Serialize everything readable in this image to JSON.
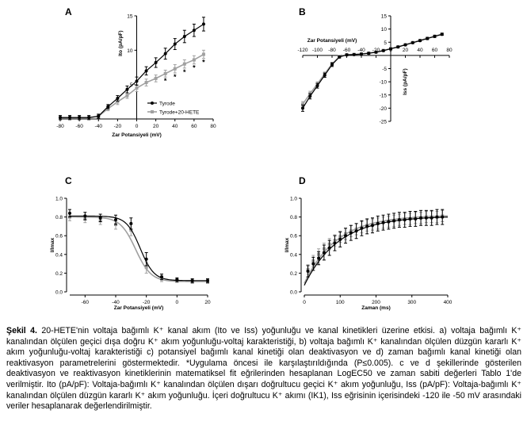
{
  "chart_data": [
    {
      "panel": "A",
      "type": "line",
      "xlabel": "Zar Potansiyeli (mV)",
      "ylabel": "Ito (pA/pF)",
      "xlim": [
        -80,
        80
      ],
      "ylim": [
        0,
        15
      ],
      "xticks": [
        "-80",
        "-60",
        "-40",
        "-20",
        "0",
        "20",
        "40",
        "60",
        "80"
      ],
      "yticks": [
        "5",
        "10",
        "15"
      ],
      "legend_position": "lower-right",
      "x": [
        -80,
        -70,
        -60,
        -50,
        -40,
        -30,
        -20,
        -10,
        0,
        10,
        20,
        30,
        40,
        50,
        60,
        70
      ],
      "series": [
        {
          "name": "Tyrode",
          "color": "#000000",
          "values": [
            0.2,
            0.2,
            0.2,
            0.2,
            0.4,
            1.8,
            3.0,
            4.3,
            5.5,
            7.0,
            8.2,
            9.5,
            10.9,
            12.0,
            12.9,
            13.8
          ],
          "errors": [
            0.3,
            0.3,
            0.3,
            0.3,
            0.3,
            0.3,
            0.4,
            0.5,
            0.6,
            0.6,
            0.7,
            0.8,
            0.8,
            0.9,
            0.9,
            1.0
          ]
        },
        {
          "name": "Tyrode+20-HETE",
          "color": "#a0a0a0",
          "values": [
            0.2,
            0.2,
            0.2,
            0.2,
            0.4,
            1.5,
            2.5,
            3.4,
            4.5,
            5.3,
            5.9,
            6.6,
            7.3,
            8.0,
            8.6,
            9.4
          ],
          "errors": [
            0.3,
            0.3,
            0.3,
            0.3,
            0.3,
            0.3,
            0.4,
            0.4,
            0.5,
            0.5,
            0.5,
            0.5,
            0.6,
            0.6,
            0.6,
            0.6
          ]
        }
      ],
      "significance": {
        "symbol": "*",
        "x": [
          30,
          40,
          50,
          60,
          70
        ]
      }
    },
    {
      "panel": "B",
      "type": "line",
      "xlabel": "Zar Potansiyeli (mV)",
      "ylabel": "Iss (pA/pF)",
      "xlim": [
        -120,
        80
      ],
      "ylim": [
        -25,
        15
      ],
      "xticks": [
        "-120",
        "-100",
        "-80",
        "-60",
        "-40",
        "-20",
        "0",
        "20",
        "40",
        "60",
        "80"
      ],
      "yticks": [
        "15",
        "10",
        "5",
        "-5",
        "-10",
        "-15",
        "-20",
        "-25"
      ],
      "x": [
        -120,
        -110,
        -100,
        -90,
        -80,
        -70,
        -60,
        -50,
        -40,
        -30,
        -20,
        -10,
        0,
        10,
        20,
        30,
        40,
        50,
        60,
        70
      ],
      "series": [
        {
          "color": "#000000",
          "values": [
            -20.0,
            -15.5,
            -11.5,
            -7.5,
            -3.5,
            -0.6,
            0.2,
            0.3,
            0.5,
            0.8,
            1.2,
            1.8,
            2.5,
            3.2,
            4.0,
            4.8,
            5.6,
            6.4,
            7.2,
            8.0
          ],
          "errors": [
            1.2,
            1.0,
            0.9,
            0.8,
            0.7,
            0.4,
            0.3,
            0.3,
            0.3,
            0.3,
            0.3,
            0.3,
            0.3,
            0.3,
            0.3,
            0.3,
            0.3,
            0.4,
            0.4,
            0.4
          ]
        },
        {
          "color": "#a0a0a0",
          "values": [
            -18.5,
            -14.5,
            -10.8,
            -7.0,
            -3.2,
            -0.5,
            0.3,
            0.4,
            0.6,
            0.9,
            1.3,
            1.9,
            2.6,
            3.3,
            4.1,
            4.9,
            5.7,
            6.5,
            7.3,
            8.1
          ],
          "errors": [
            1.0,
            0.9,
            0.8,
            0.7,
            0.6,
            0.4,
            0.3,
            0.3,
            0.3,
            0.3,
            0.3,
            0.3,
            0.3,
            0.3,
            0.3,
            0.3,
            0.3,
            0.4,
            0.4,
            0.4
          ]
        }
      ]
    },
    {
      "panel": "C",
      "type": "line",
      "xlabel": "Zar Potansiyeli (mV)",
      "ylabel": "I/Imax",
      "xlim": [
        -70,
        20
      ],
      "ylim": [
        0,
        1.0
      ],
      "xticks": [
        "-60",
        "-40",
        "-20",
        "0",
        "20"
      ],
      "yticks": [
        "0.0",
        "0.2",
        "0.4",
        "0.6",
        "0.8",
        "1.0"
      ],
      "x": [
        -70,
        -60,
        -50,
        -40,
        -30,
        -20,
        -10,
        0,
        10,
        20
      ],
      "series": [
        {
          "color": "#000000",
          "values": [
            0.84,
            0.81,
            0.79,
            0.77,
            0.73,
            0.35,
            0.16,
            0.13,
            0.12,
            0.12
          ],
          "errors": [
            0.04,
            0.04,
            0.04,
            0.05,
            0.06,
            0.07,
            0.03,
            0.02,
            0.02,
            0.02
          ],
          "fit": {
            "top": 0.81,
            "bottom": 0.12,
            "v50": -24,
            "k": 4.5
          }
        },
        {
          "color": "#a0a0a0",
          "values": [
            0.8,
            0.78,
            0.76,
            0.72,
            0.66,
            0.26,
            0.14,
            0.12,
            0.11,
            0.11
          ],
          "errors": [
            0.04,
            0.04,
            0.04,
            0.05,
            0.06,
            0.06,
            0.03,
            0.02,
            0.02,
            0.02
          ],
          "fit": {
            "top": 0.8,
            "bottom": 0.11,
            "v50": -27,
            "k": 5.0
          }
        }
      ]
    },
    {
      "panel": "D",
      "type": "line",
      "xlabel": "Zaman (ms)",
      "ylabel": "I/Imax",
      "xlim": [
        0,
        400
      ],
      "ylim": [
        0,
        1.0
      ],
      "xticks": [
        "0",
        "100",
        "200",
        "300",
        "400"
      ],
      "yticks": [
        "0.0",
        "0.2",
        "0.4",
        "0.6",
        "0.8",
        "1.0"
      ],
      "x": [
        10,
        25,
        40,
        55,
        70,
        85,
        100,
        115,
        130,
        145,
        160,
        175,
        190,
        205,
        220,
        235,
        250,
        265,
        280,
        295,
        310,
        325,
        340,
        355,
        370,
        385
      ],
      "series": [
        {
          "color": "#000000",
          "values": [
            0.22,
            0.3,
            0.36,
            0.42,
            0.47,
            0.52,
            0.56,
            0.6,
            0.63,
            0.65,
            0.68,
            0.7,
            0.71,
            0.73,
            0.74,
            0.75,
            0.76,
            0.77,
            0.77,
            0.78,
            0.78,
            0.79,
            0.79,
            0.79,
            0.8,
            0.8
          ],
          "errors": [
            0.06,
            0.07,
            0.07,
            0.08,
            0.08,
            0.08,
            0.08,
            0.08,
            0.08,
            0.08,
            0.08,
            0.08,
            0.08,
            0.08,
            0.08,
            0.08,
            0.08,
            0.08,
            0.08,
            0.08,
            0.08,
            0.08,
            0.08,
            0.08,
            0.08,
            0.08
          ],
          "fit": {
            "y0": 0.07,
            "plateau": 0.81,
            "tau": 95
          }
        },
        {
          "color": "#a0a0a0",
          "values": [
            0.24,
            0.33,
            0.4,
            0.46,
            0.51,
            0.55,
            0.59,
            0.62,
            0.65,
            0.67,
            0.69,
            0.71,
            0.72,
            0.73,
            0.74,
            0.75,
            0.76,
            0.77,
            0.78,
            0.78,
            0.79,
            0.79,
            0.8,
            0.8,
            0.8,
            0.81
          ],
          "errors": [
            0.05,
            0.06,
            0.06,
            0.06,
            0.06,
            0.06,
            0.06,
            0.06,
            0.06,
            0.06,
            0.06,
            0.06,
            0.06,
            0.06,
            0.06,
            0.06,
            0.06,
            0.06,
            0.06,
            0.06,
            0.06,
            0.06,
            0.06,
            0.06,
            0.06,
            0.06
          ],
          "fit": {
            "y0": 0.09,
            "plateau": 0.82,
            "tau": 90
          }
        }
      ]
    }
  ],
  "caption": {
    "label": "Şekil 4.",
    "text": "20-HETE'nin voltaja bağımlı K⁺ kanal akım (Ito ve Iss) yoğunluğu ve kanal kinetikleri üzerine etkisi. a) voltaja bağımlı K⁺ kanalından ölçülen geçici dışa doğru K⁺ akım yoğunluğu-voltaj karakteristiği, b) voltaja bağımlı K⁺ kanalından ölçülen düzgün kararlı K⁺ akım yoğunluğu-voltaj karakteristiği c) potansiyel bağımlı kanal kinetiği olan deaktivasyon ve d) zaman bağımlı kanal kinetiği olan reaktivasyon parametrelerini göstermektedir. *Uygulama öncesi ile karşılaştırıldığında (P≤0.005). c ve d şekillerinde gösterilen deaktivasyon ve reaktivasyon kinetiklerinin matematiksel fit eğrilerinden hesaplanan LogEC50 ve zaman sabiti değerleri Tablo 1'de verilmiştir. Ito (pA/pF): Voltaja-bağımlı K⁺ kanalından ölçülen dışarı doğrultucu geçici K⁺ akım yoğunluğu, Iss (pA/pF): Voltaja-bağımlı K⁺ kanalından ölçülen düzgün kararlı K⁺ akım yoğunluğu. İçeri doğrultucu K⁺ akımı (IK1), Iss eğrisinin içerisindeki -120 ile -50 mV arasındaki veriler hesaplanarak değerlendirilmiştir."
  }
}
